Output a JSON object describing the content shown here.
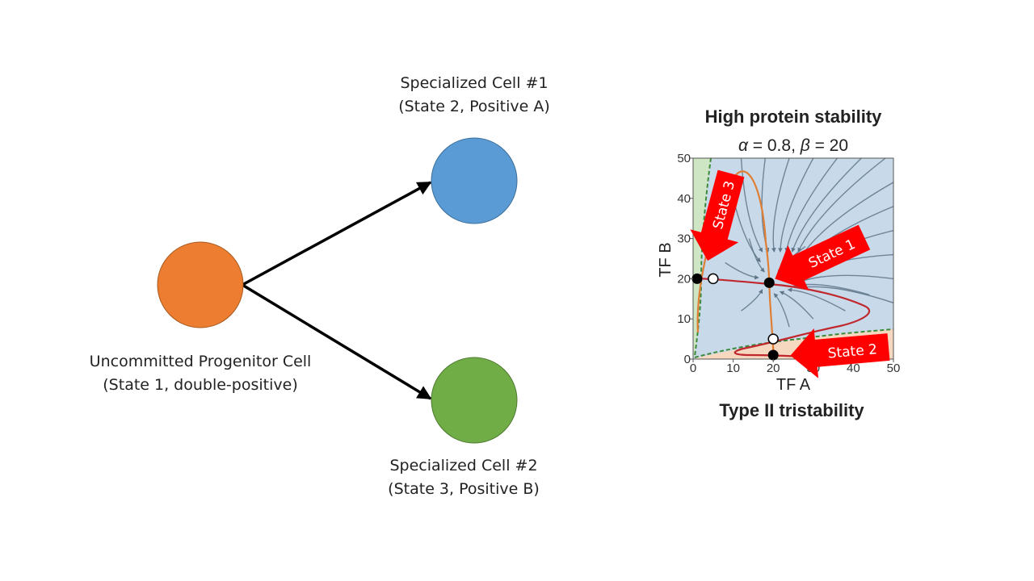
{
  "diagram": {
    "progenitor": {
      "line1": "Uncommitted Progenitor Cell",
      "line2": "(State 1, double-positive)",
      "color": "#ED7D31"
    },
    "cell1": {
      "line1": "Specialized Cell #1",
      "line2": "(State 2, Positive A)",
      "color": "#5B9BD5"
    },
    "cell2": {
      "line1": "Specialized Cell #2",
      "line2": "(State 3, Positive B)",
      "color": "#70AD47"
    }
  },
  "phase_plot": {
    "title": "High protein stability",
    "params": {
      "alpha_symbol": "α",
      "alpha_text": " = 0.8, ",
      "beta_symbol": "β",
      "beta_text": " = 20"
    },
    "xlabel": "TF A",
    "ylabel": "TF B",
    "footer": "Type II tristability",
    "x_ticks": [
      "0",
      "10",
      "20",
      "30",
      "40",
      "50"
    ],
    "y_ticks": [
      "0",
      "10",
      "20",
      "30",
      "40",
      "50"
    ],
    "xlim": [
      0,
      50
    ],
    "ylim": [
      0,
      50
    ],
    "stable_points": [
      {
        "name": "State 1",
        "x": 19,
        "y": 19
      },
      {
        "name": "State 2",
        "x": 20,
        "y": 1
      },
      {
        "name": "State 3",
        "x": 1,
        "y": 20
      }
    ],
    "unstable_points": [
      {
        "x": 5,
        "y": 20
      },
      {
        "x": 20,
        "y": 5
      }
    ],
    "callouts": {
      "state1": "State 1",
      "state2": "State 2",
      "state3": "State 3"
    },
    "colors": {
      "basin_state1": "#C8DAEA",
      "basin_state2": "#F6D7C0",
      "basin_state3": "#CFE6C4",
      "stream": "#5F7588",
      "nullcline_a": "#E07E33",
      "nullcline_b": "#C0282E",
      "separatrix": "#3A8A3A",
      "callout": "#FF0000"
    }
  }
}
